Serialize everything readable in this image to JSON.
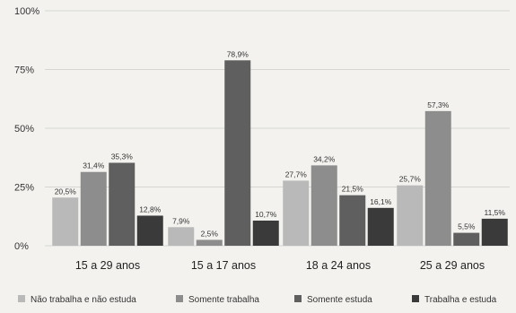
{
  "chart_data": {
    "type": "bar",
    "title": "",
    "xlabel": "",
    "ylabel": "",
    "ylim": [
      0,
      100
    ],
    "yticks": [
      "0%",
      "25%",
      "50%",
      "75%",
      "100%"
    ],
    "grid": true,
    "legend_position": "bottom",
    "categories": [
      "15 a 29 anos",
      "15 a 17 anos",
      "18 a 24 anos",
      "25 a 29 anos"
    ],
    "series": [
      {
        "name": "Não trabalha e não estuda",
        "color": "#b9b9b9",
        "values": [
          20.5,
          7.9,
          27.7,
          25.7
        ],
        "labels": [
          "20,5%",
          "7,9%",
          "27,7%",
          "25,7%"
        ]
      },
      {
        "name": "Somente trabalha",
        "color": "#8d8d8d",
        "values": [
          31.4,
          2.5,
          34.2,
          57.3
        ],
        "labels": [
          "31,4%",
          "2,5%",
          "34,2%",
          "57,3%"
        ]
      },
      {
        "name": "Somente estuda",
        "color": "#5f5f5f",
        "values": [
          35.3,
          78.9,
          21.5,
          5.5
        ],
        "labels": [
          "35,3%",
          "78,9%",
          "21,5%",
          "5,5%"
        ]
      },
      {
        "name": "Trabalha e estuda",
        "color": "#3a3a3a",
        "values": [
          12.8,
          10.7,
          16.1,
          11.5
        ],
        "labels": [
          "12,8%",
          "10,7%",
          "16,1%",
          "11,5%"
        ]
      }
    ]
  }
}
